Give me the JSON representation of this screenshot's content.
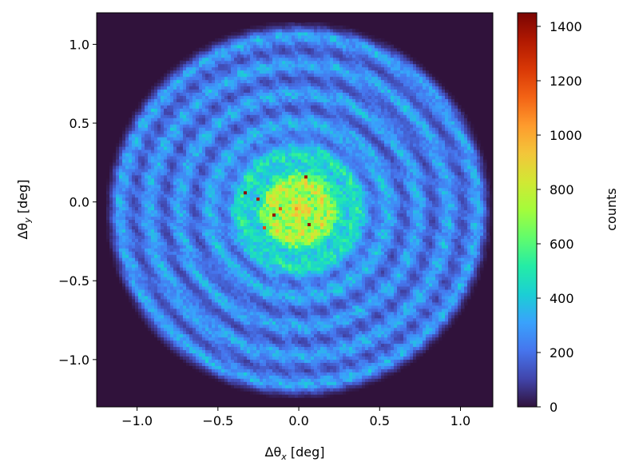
{
  "chart_data": {
    "type": "heatmap",
    "title": "",
    "xlabel": {
      "base": "Δθ",
      "sub": "x",
      "unit": " [deg]"
    },
    "ylabel": {
      "base": "Δθ",
      "sub": "y",
      "unit": " [deg]"
    },
    "xlim": [
      -1.25,
      1.2
    ],
    "ylim": [
      -1.3,
      1.2
    ],
    "xticks": [
      -1.0,
      -0.5,
      0.0,
      0.5,
      1.0
    ],
    "xtick_labels": [
      "−1.0",
      "−0.5",
      "0.0",
      "0.5",
      "1.0"
    ],
    "yticks": [
      -1.0,
      -0.5,
      0.0,
      0.5,
      1.0
    ],
    "ytick_labels": [
      "−1.0",
      "−0.5",
      "0.0",
      "0.5",
      "1.0"
    ],
    "colorbar": {
      "label": "counts",
      "range": [
        0,
        1450
      ],
      "ticks": [
        0,
        200,
        400,
        600,
        800,
        1000,
        1200,
        1400
      ],
      "tick_labels": [
        "0",
        "200",
        "400",
        "600",
        "800",
        "1000",
        "1200",
        "1400"
      ],
      "colormap": "turbo"
    },
    "distribution": {
      "center": [
        0.0,
        -0.05
      ],
      "outer_radius": 1.2,
      "peak_counts": 1450,
      "background_counts": 0
    },
    "colors": {
      "background": "#30123b",
      "axes": "#000000"
    }
  }
}
